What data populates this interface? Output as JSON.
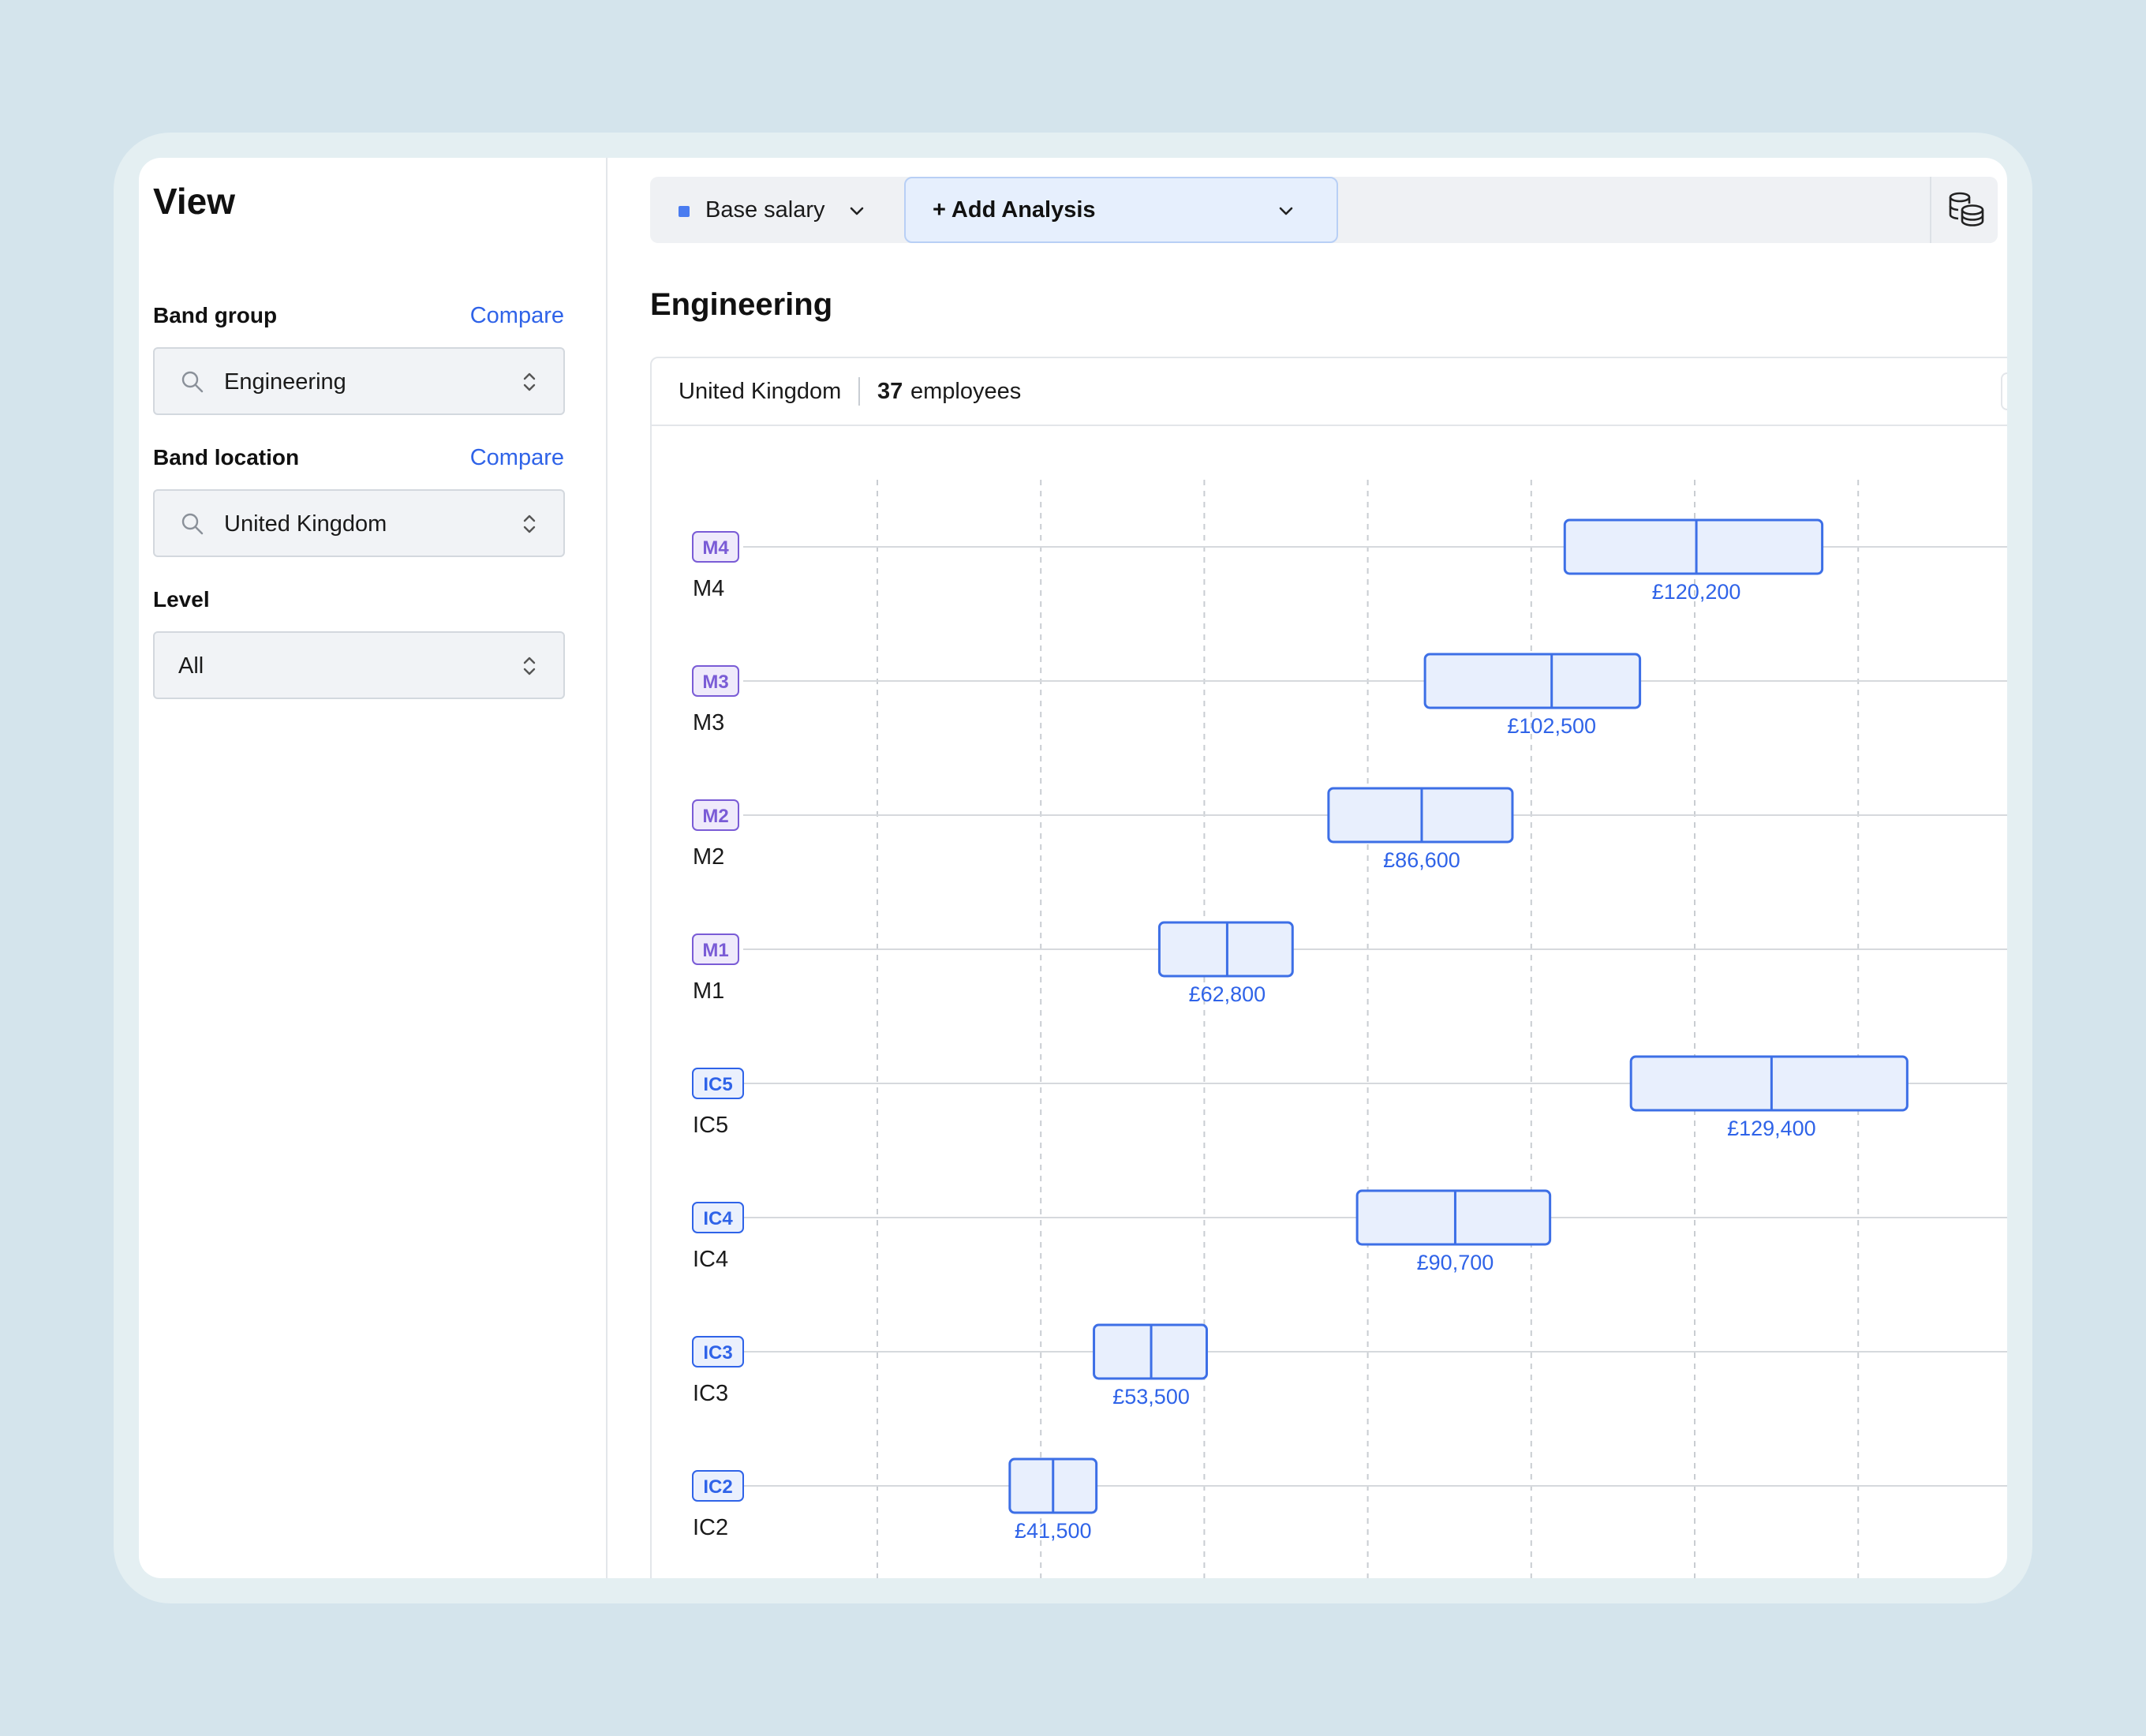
{
  "sidebar": {
    "title": "View",
    "band_group": {
      "label": "Band group",
      "compare": "Compare",
      "value": "Engineering"
    },
    "band_location": {
      "label": "Band location",
      "compare": "Compare",
      "value": "United Kingdom"
    },
    "level": {
      "label": "Level",
      "value": "All"
    }
  },
  "toolbar": {
    "base_salary": "Base salary",
    "add_analysis": "+ Add Analysis",
    "accent": "#4a7cf0"
  },
  "main": {
    "section_title": "Engineering",
    "location": "United Kingdom",
    "employee_count": "37",
    "employees_label": "employees"
  },
  "colors": {
    "ic_badge": "#2f63e8",
    "m_badge": "#7a5cd6",
    "box_fill": "#e8effd",
    "box_stroke": "#3d6fe6",
    "value_text": "#2f63e8"
  },
  "chart_data": {
    "type": "box",
    "currency": "£",
    "rows": [
      {
        "level": "M4",
        "badge": "M4",
        "family": "M",
        "min": 104100,
        "mid": 120200,
        "max": 135600,
        "label": "£120,200"
      },
      {
        "level": "M3",
        "badge": "M3",
        "family": "M",
        "min": 87000,
        "mid": 102500,
        "max": 113300,
        "label": "£102,500"
      },
      {
        "level": "M2",
        "badge": "M2",
        "family": "M",
        "min": 75200,
        "mid": 86600,
        "max": 97700,
        "label": "£86,600"
      },
      {
        "level": "M1",
        "badge": "M1",
        "family": "M",
        "min": 54500,
        "mid": 62800,
        "max": 70800,
        "label": "£62,800"
      },
      {
        "level": "IC5",
        "badge": "IC5",
        "family": "IC",
        "min": 112200,
        "mid": 129400,
        "max": 146000,
        "label": "£129,400"
      },
      {
        "level": "IC4",
        "badge": "IC4",
        "family": "IC",
        "min": 78700,
        "mid": 90700,
        "max": 102300,
        "label": "£90,700"
      },
      {
        "level": "IC3",
        "badge": "IC3",
        "family": "IC",
        "min": 46500,
        "mid": 53500,
        "max": 60300,
        "label": "£53,500"
      },
      {
        "level": "IC2",
        "badge": "IC2",
        "family": "IC",
        "min": 36200,
        "mid": 41500,
        "max": 46800,
        "label": "£41,500"
      }
    ],
    "gridlines": [
      20000,
      40000,
      60000,
      80000,
      100000,
      120000,
      140000
    ],
    "grid": true
  }
}
